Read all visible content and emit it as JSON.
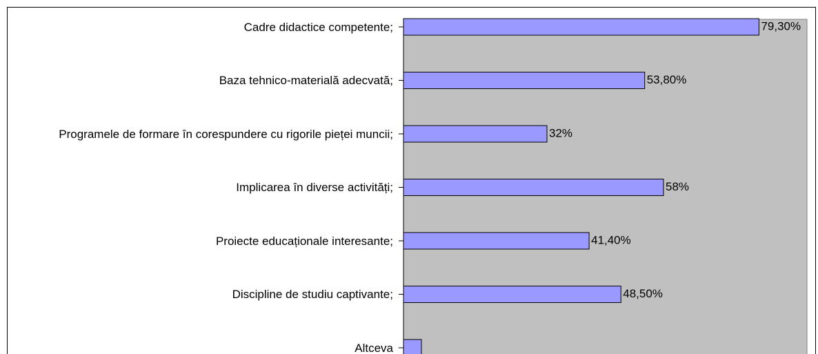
{
  "chart_data": {
    "type": "bar",
    "orientation": "horizontal",
    "categories": [
      "Cadre didactice competente;",
      "Baza tehnico-materială adecvată;",
      "Programele de formare în corespundere cu rigorile pieței muncii;",
      "Implicarea în diverse activități;",
      "Proiecte educaționale interesante;",
      "Discipline de studiu captivante;",
      "Altceva"
    ],
    "values": [
      79.3,
      53.8,
      32,
      58,
      41.4,
      48.5,
      4
    ],
    "value_labels": [
      "79,30%",
      "53,80%",
      "32%",
      "58%",
      "41,40%",
      "48,50%",
      null
    ],
    "color": "#9999ff",
    "xlim": [
      0,
      90
    ]
  }
}
